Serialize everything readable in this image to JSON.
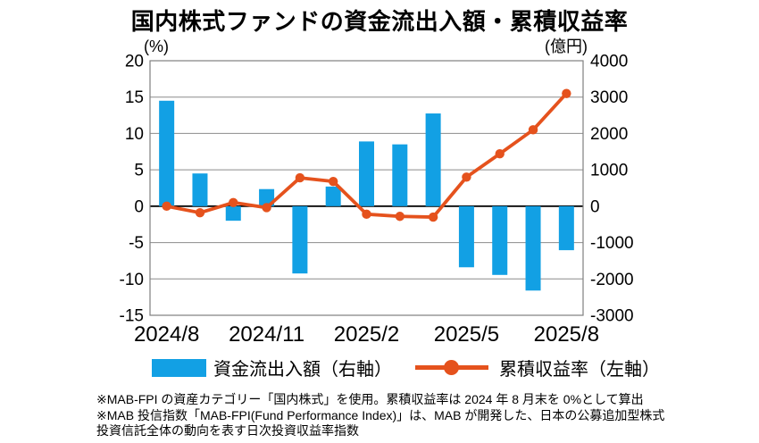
{
  "title": "国内株式ファンドの資金流出入額・累積収益率",
  "chart_data": {
    "type": "combo",
    "categories": [
      "2024/8",
      "2024/9",
      "2024/10",
      "2024/11",
      "2024/12",
      "2025/1",
      "2025/2",
      "2025/3",
      "2025/4",
      "2025/5",
      "2025/6",
      "2025/7",
      "2025/8"
    ],
    "x_ticks": [
      {
        "i": 0,
        "label": "2024/8"
      },
      {
        "i": 3,
        "label": "2024/11"
      },
      {
        "i": 6,
        "label": "2025/2"
      },
      {
        "i": 9,
        "label": "2025/5"
      },
      {
        "i": 12,
        "label": "2025/8"
      }
    ],
    "series": [
      {
        "name": "資金流出入額（右軸）",
        "type": "bar",
        "axis": "right",
        "unit": "億円",
        "color": "#12A0E4",
        "values": [
          2900,
          900,
          -400,
          470,
          -1850,
          540,
          1780,
          1700,
          2550,
          -1680,
          -1890,
          -2320,
          -1210
        ]
      },
      {
        "name": "累積収益率（左軸）",
        "type": "line",
        "axis": "left",
        "unit": "%",
        "color": "#E5521D",
        "values": [
          0,
          -0.9,
          0.5,
          -0.2,
          3.9,
          3.4,
          -1.1,
          -1.4,
          -1.5,
          4.0,
          7.2,
          10.5,
          15.5
        ]
      }
    ],
    "left_axis": {
      "label": "(%)",
      "min": -15,
      "max": 20,
      "ticks": [
        20,
        15,
        10,
        5,
        0,
        -5,
        -10,
        -15
      ]
    },
    "right_axis": {
      "label": "(億円)",
      "min": -3000,
      "max": 4000,
      "ticks": [
        4000,
        3000,
        2000,
        1000,
        0,
        -1000,
        -2000,
        -3000
      ]
    },
    "grid": true,
    "legend_position": "bottom"
  },
  "footnotes": [
    "※MAB-FPI の資産カテゴリー「国内株式」を使用。累積収益率は 2024 年 8 月末を 0%として算出",
    "※MAB 投信指数「MAB-FPI(Fund Performance Index)」は、MAB が開発した、日本の公募追加型株式",
    "投資信託全体の動向を表す日次投資収益率指数"
  ]
}
